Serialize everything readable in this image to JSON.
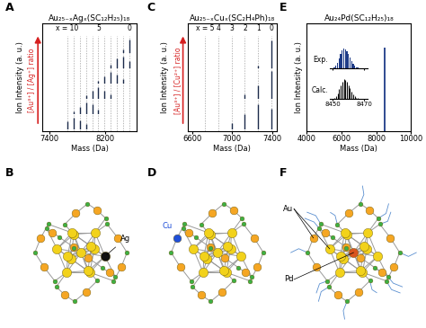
{
  "chart_data": [
    {
      "letter": "A",
      "type": "spectrum",
      "title": "Au₂₅₋ₓAgₓ(SC₁₂H₂₅)₁₈",
      "x_label": "Mass (Da)",
      "y_label": "Ion Intensity (a. u.)",
      "arrow_label": "[Au³⁺] / [Ag⁺] ratio",
      "xlim": [
        7300,
        8650
      ],
      "xticks": [
        7400,
        8200
      ],
      "ylim": [
        0,
        1.1
      ],
      "tick_labels": "x",
      "color": "#1b2a4a",
      "reference_lines": [
        8549,
        8459.9,
        8370.8,
        8281.7,
        8192.6,
        8103.5,
        8014.4,
        7925.3,
        7836.2,
        7747.1,
        7658
      ],
      "reference_labels": [
        {
          "value": 7658,
          "label": "x = 10"
        },
        {
          "value": 8103.5,
          "label": "5"
        },
        {
          "value": 8549,
          "label": "0"
        }
      ],
      "series": [
        {
          "x": [
            8549,
            8459.9
          ],
          "values": [
            1.0,
            0.25
          ]
        },
        {
          "x": [
            8549,
            8459.9,
            8370.8,
            8281.7
          ],
          "values": [
            0.5,
            0.85,
            0.7,
            0.3
          ]
        },
        {
          "x": [
            8459.9,
            8370.8,
            8281.7,
            8192.6,
            8103.5
          ],
          "values": [
            0.3,
            0.65,
            0.85,
            0.55,
            0.2
          ]
        },
        {
          "x": [
            8281.7,
            8192.6,
            8103.5,
            8014.4,
            7925.3
          ],
          "values": [
            0.3,
            0.6,
            0.85,
            0.6,
            0.25
          ]
        },
        {
          "x": [
            8103.5,
            8014.4,
            7925.3,
            7836.2,
            7747.1
          ],
          "values": [
            0.3,
            0.7,
            0.85,
            0.5,
            0.2
          ]
        },
        {
          "x": [
            7925.3,
            7836.2,
            7747.1,
            7658
          ],
          "values": [
            0.35,
            0.6,
            0.8,
            0.55
          ]
        }
      ]
    },
    {
      "letter": "C",
      "type": "spectrum",
      "title": "Au₂₅₋ₓCuₓ(SC₂H₄Ph)₁₈",
      "x_label": "Mass (Da)",
      "y_label": "Ion Intensity (a. u.)",
      "arrow_label": "[Au³⁺] / [Cu²⁺] ratio",
      "xlim": [
        6550,
        7450
      ],
      "xticks": [
        6600,
        7000,
        7400
      ],
      "ylim": [
        0,
        1.1
      ],
      "tick_labels": "x",
      "color": "#1b2a4a",
      "reference_lines": [
        7394,
        7260.6,
        7127.2,
        6993.8,
        6860.4,
        6727
      ],
      "reference_labels": [
        {
          "value": 6727,
          "label": "x = 5"
        },
        {
          "value": 6860.4,
          "label": "4"
        },
        {
          "value": 6993.8,
          "label": "3"
        },
        {
          "value": 7127.2,
          "label": "2"
        },
        {
          "value": 7260.6,
          "label": "1"
        },
        {
          "value": 7394,
          "label": "0"
        }
      ],
      "series": [
        {
          "x": [
            7394,
            7260.6
          ],
          "values": [
            1.0,
            0.1
          ]
        },
        {
          "x": [
            7394,
            7260.6,
            7127.2
          ],
          "values": [
            1.0,
            0.5,
            0.15
          ]
        },
        {
          "x": [
            7394,
            7260.6,
            7127.2,
            6993.8
          ],
          "values": [
            0.75,
            0.9,
            0.55,
            0.2
          ]
        }
      ]
    },
    {
      "letter": "E",
      "type": "spectrum",
      "title": "Au₂₄Pd(SC₁₂H₂₅)₁₈",
      "x_label": "Mass (Da)",
      "y_label": "Ion Intensity (a. u.)",
      "xlim": [
        4000,
        10000
      ],
      "xticks": [
        4000,
        6000,
        8000,
        10000
      ],
      "ylim": [
        0,
        1.3
      ],
      "tick_labels": "x",
      "color": "#1f3c88",
      "series": [
        {
          "x": [
            8459
          ],
          "values": [
            1.0
          ]
        }
      ],
      "inset": {
        "xlim": [
          8448,
          8472
        ],
        "xticks": [
          8450,
          8470
        ],
        "ylim": [
          0,
          1.1
        ],
        "series": [
          {
            "name": "Exp.",
            "type": "bar",
            "color": "#1f3c88",
            "x": [
              8451,
              8452,
              8453,
              8454,
              8455,
              8456,
              8457,
              8458,
              8459,
              8460,
              8461,
              8462,
              8463,
              8464,
              8465,
              8466,
              8467
            ],
            "values": [
              0.05,
              0.15,
              0.3,
              0.5,
              0.72,
              0.9,
              1.0,
              0.98,
              0.88,
              0.72,
              0.55,
              0.38,
              0.24,
              0.13,
              0.07,
              0.03,
              0.01
            ]
          },
          {
            "name": "Calc.",
            "type": "stem",
            "color": "#111111",
            "x": [
              8451,
              8452,
              8453,
              8454,
              8455,
              8456,
              8457,
              8458,
              8459,
              8460,
              8461,
              8462,
              8463,
              8464,
              8465,
              8466,
              8467
            ],
            "values": [
              0.04,
              0.12,
              0.28,
              0.48,
              0.7,
              0.88,
              1.0,
              0.97,
              0.86,
              0.7,
              0.52,
              0.36,
              0.22,
              0.12,
              0.06,
              0.03,
              0.01
            ]
          }
        ]
      }
    }
  ],
  "structures": [
    {
      "letter": "B",
      "type": "core",
      "labels": [
        "Ag"
      ],
      "color": "#111111"
    },
    {
      "letter": "D",
      "type": "shell",
      "labels": [
        "Cu"
      ],
      "color": "#1f4fd8"
    },
    {
      "letter": "F",
      "type": "center",
      "labels": [
        "Au",
        "Pd"
      ],
      "color": "#d9541e"
    }
  ]
}
